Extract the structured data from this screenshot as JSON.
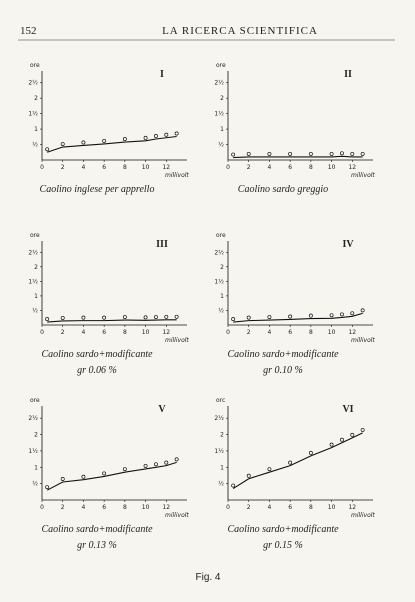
{
  "header": {
    "page": "152",
    "title": "LA RICERCA SCIENTIFICA"
  },
  "chart_data": [
    {
      "type": "line",
      "label": "I",
      "ylabel": "ore",
      "xlabel": "millivolt",
      "caption": "Caolino inglese per apprello",
      "x": [
        0.5,
        2,
        4,
        6,
        8,
        10,
        11,
        12,
        13
      ],
      "values": [
        0.25,
        0.42,
        0.47,
        0.52,
        0.58,
        0.62,
        0.68,
        0.72,
        0.76
      ],
      "xlim": [
        0,
        14
      ],
      "ylim": [
        0,
        2.75
      ],
      "xticks": [
        0,
        2,
        4,
        6,
        8,
        10,
        12
      ],
      "yticks": [
        {
          "value": 0.5,
          "label": "½"
        },
        1,
        {
          "value": 1.5,
          "label": "1½"
        },
        2,
        {
          "value": 2.5,
          "label": "2½"
        }
      ]
    },
    {
      "type": "line",
      "label": "II",
      "ylabel": "ore",
      "xlabel": "millivolt",
      "caption": "Caolino sardo greggio",
      "x": [
        0.5,
        2,
        4,
        6,
        8,
        10,
        11,
        12,
        13
      ],
      "values": [
        0.08,
        0.1,
        0.1,
        0.1,
        0.1,
        0.1,
        0.12,
        0.1,
        0.1
      ],
      "xlim": [
        0,
        14
      ],
      "ylim": [
        0,
        2.75
      ],
      "xticks": [
        0,
        2,
        4,
        6,
        8,
        10,
        12
      ],
      "yticks": [
        {
          "value": 0.5,
          "label": "½"
        },
        1,
        {
          "value": 1.5,
          "label": "1½"
        },
        2,
        {
          "value": 2.5,
          "label": "2½"
        }
      ]
    },
    {
      "type": "line",
      "label": "III",
      "ylabel": "ore",
      "xlabel": "millivolt",
      "caption": "Caolino sardo+modificante",
      "note": "gr 0.06 %",
      "x": [
        0.5,
        2,
        4,
        6,
        8,
        10,
        11,
        12,
        13
      ],
      "values": [
        0.1,
        0.14,
        0.15,
        0.15,
        0.17,
        0.16,
        0.17,
        0.18,
        0.18
      ],
      "xlim": [
        0,
        14
      ],
      "ylim": [
        0,
        2.75
      ],
      "xticks": [
        0,
        2,
        4,
        6,
        8,
        10,
        12
      ],
      "yticks": [
        {
          "value": 0.5,
          "label": "½"
        },
        1,
        {
          "value": 1.5,
          "label": "1½"
        },
        2,
        {
          "value": 2.5,
          "label": "2½"
        }
      ]
    },
    {
      "type": "line",
      "label": "IV",
      "ylabel": "ore",
      "xlabel": "millivolt",
      "caption": "Caolino sardo+modificante",
      "note": "gr 0.10 %",
      "x": [
        0.5,
        2,
        4,
        6,
        8,
        10,
        11,
        12,
        13
      ],
      "values": [
        0.1,
        0.15,
        0.17,
        0.19,
        0.22,
        0.23,
        0.26,
        0.3,
        0.4
      ],
      "xlim": [
        0,
        14
      ],
      "ylim": [
        0,
        2.75
      ],
      "xticks": [
        0,
        2,
        4,
        6,
        8,
        10,
        12
      ],
      "yticks": [
        {
          "value": 0.5,
          "label": "½"
        },
        1,
        {
          "value": 1.5,
          "label": "1½"
        },
        2,
        {
          "value": 2.5,
          "label": "2½"
        }
      ]
    },
    {
      "type": "line",
      "label": "V",
      "ylabel": "ore",
      "xlabel": "millivolt",
      "caption": "Caolino sardo+modificante",
      "note": "gr 0.13 %",
      "x": [
        0.5,
        2,
        4,
        6,
        8,
        10,
        11,
        12,
        13
      ],
      "values": [
        0.3,
        0.55,
        0.62,
        0.72,
        0.85,
        0.95,
        1.0,
        1.05,
        1.15
      ],
      "xlim": [
        0,
        14
      ],
      "ylim": [
        0,
        2.75
      ],
      "xticks": [
        0,
        2,
        4,
        6,
        8,
        10,
        12
      ],
      "yticks": [
        {
          "value": 0.5,
          "label": "½"
        },
        1,
        {
          "value": 1.5,
          "label": "1½"
        },
        2,
        {
          "value": 2.5,
          "label": "2½"
        }
      ]
    },
    {
      "type": "line",
      "label": "VI",
      "ylabel": "orc",
      "xlabel": "millivolt",
      "caption": "Caolino sardo+modificante",
      "note": "gr 0.15 %",
      "x": [
        0.5,
        2,
        4,
        6,
        8,
        10,
        11,
        12,
        13
      ],
      "values": [
        0.35,
        0.65,
        0.85,
        1.05,
        1.35,
        1.6,
        1.75,
        1.9,
        2.05
      ],
      "xlim": [
        0,
        14
      ],
      "ylim": [
        0,
        2.75
      ],
      "xticks": [
        0,
        2,
        4,
        6,
        8,
        10,
        12
      ],
      "yticks": [
        {
          "value": 0.5,
          "label": "½"
        },
        1,
        {
          "value": 1.5,
          "label": "1½"
        },
        2,
        {
          "value": 2.5,
          "label": "2½"
        }
      ]
    }
  ],
  "figure_caption": "Fig. 4"
}
